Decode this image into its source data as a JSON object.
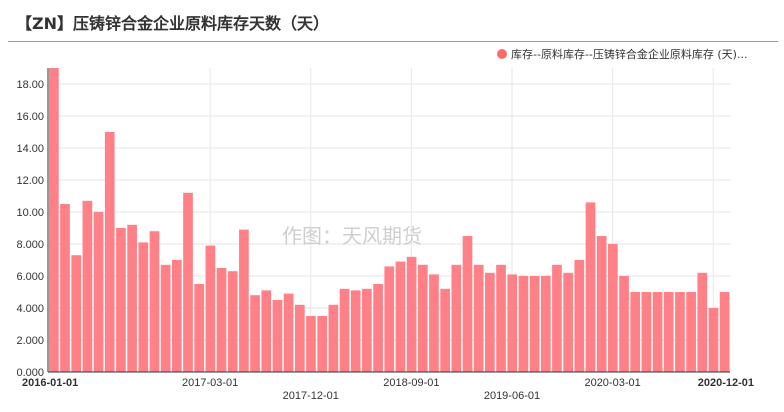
{
  "title": "【ZN】压铸锌合金企业原料库存天数（天）",
  "legend": {
    "label": "库存--原料库存--压铸锌合金企业原料库存 (天)...",
    "color": "#ff6b6b"
  },
  "watermark": "作图：天风期货",
  "chart_data": {
    "type": "bar",
    "bar_color": "#ff8087",
    "ylim": [
      0,
      19
    ],
    "yticks": [
      0,
      2,
      4,
      6,
      8,
      10,
      12,
      14,
      16,
      18
    ],
    "ytick_labels": [
      "0.000",
      "2.000",
      "4.000",
      "6.000",
      "8.000",
      "10.00",
      "12.00",
      "14.00",
      "16.00",
      "18.00"
    ],
    "x_start": "2016-01",
    "x_labels": [
      {
        "label": "2016-01-01",
        "index": 0,
        "row": 0,
        "bold": true
      },
      {
        "label": "2017-03-01",
        "index": 14,
        "row": 0,
        "bold": false
      },
      {
        "label": "2017-12-01",
        "index": 23,
        "row": 1,
        "bold": false
      },
      {
        "label": "2018-09-01",
        "index": 32,
        "row": 0,
        "bold": false
      },
      {
        "label": "2019-06-01",
        "index": 41,
        "row": 1,
        "bold": false
      },
      {
        "label": "2020-03-01",
        "index": 50,
        "row": 0,
        "bold": false
      },
      {
        "label": "2020-12-01",
        "index": 59,
        "row": 0,
        "bold": true
      }
    ],
    "values": [
      19.2,
      10.5,
      7.3,
      10.7,
      10.0,
      15.0,
      9.0,
      9.2,
      8.1,
      8.8,
      6.7,
      7.0,
      11.2,
      5.5,
      7.9,
      6.5,
      6.3,
      8.9,
      4.8,
      5.1,
      4.5,
      4.9,
      4.2,
      3.5,
      3.5,
      4.2,
      5.2,
      5.1,
      5.2,
      5.5,
      6.6,
      6.9,
      7.2,
      6.7,
      6.1,
      5.2,
      6.7,
      8.5,
      6.7,
      6.2,
      6.7,
      6.1,
      6.0,
      6.0,
      6.0,
      6.7,
      6.2,
      7.0,
      10.6,
      8.5,
      8.0,
      6.0,
      5.0,
      5.0,
      5.0,
      5.0,
      5.0,
      5.0,
      6.2,
      4.0,
      5.0
    ]
  }
}
